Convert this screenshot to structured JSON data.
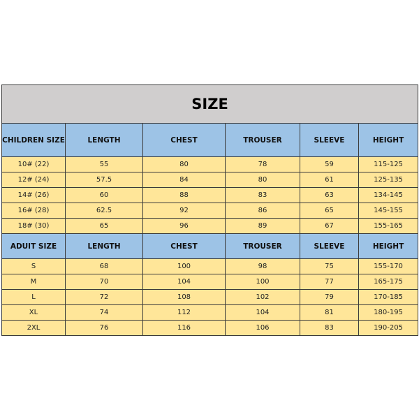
{
  "title": "SIZE",
  "children": {
    "headers": [
      "CHILDREN SIZE",
      "LENGTH",
      "CHEST",
      "TROUSER",
      "SLEEVE",
      "HEIGHT"
    ],
    "rows": [
      [
        "10#  (22)",
        "55",
        "80",
        "78",
        "59",
        "115-125"
      ],
      [
        "12#  (24)",
        "57.5",
        "84",
        "80",
        "61",
        "125-135"
      ],
      [
        "14#  (26)",
        "60",
        "88",
        "83",
        "63",
        "134-145"
      ],
      [
        "16#  (28)",
        "62.5",
        "92",
        "86",
        "65",
        "145-155"
      ],
      [
        "18#  (30)",
        "65",
        "96",
        "89",
        "67",
        "155-165"
      ]
    ]
  },
  "adult": {
    "headers": [
      "ADUIT SIZE",
      "LENGTH",
      "CHEST",
      "TROUSER",
      "SLEEVE",
      "HEIGHT"
    ],
    "rows": [
      [
        "S",
        "68",
        "100",
        "98",
        "75",
        "155-170"
      ],
      [
        "M",
        "70",
        "104",
        "100",
        "77",
        "165-175"
      ],
      [
        "L",
        "72",
        "108",
        "102",
        "79",
        "170-185"
      ],
      [
        "XL",
        "74",
        "112",
        "104",
        "81",
        "180-195"
      ],
      [
        "2XL",
        "76",
        "116",
        "106",
        "83",
        "190-205"
      ]
    ]
  },
  "colors": {
    "title_bg": "#d0cece",
    "header_bg": "#9dc3e6",
    "row_bg": "#ffe699"
  }
}
